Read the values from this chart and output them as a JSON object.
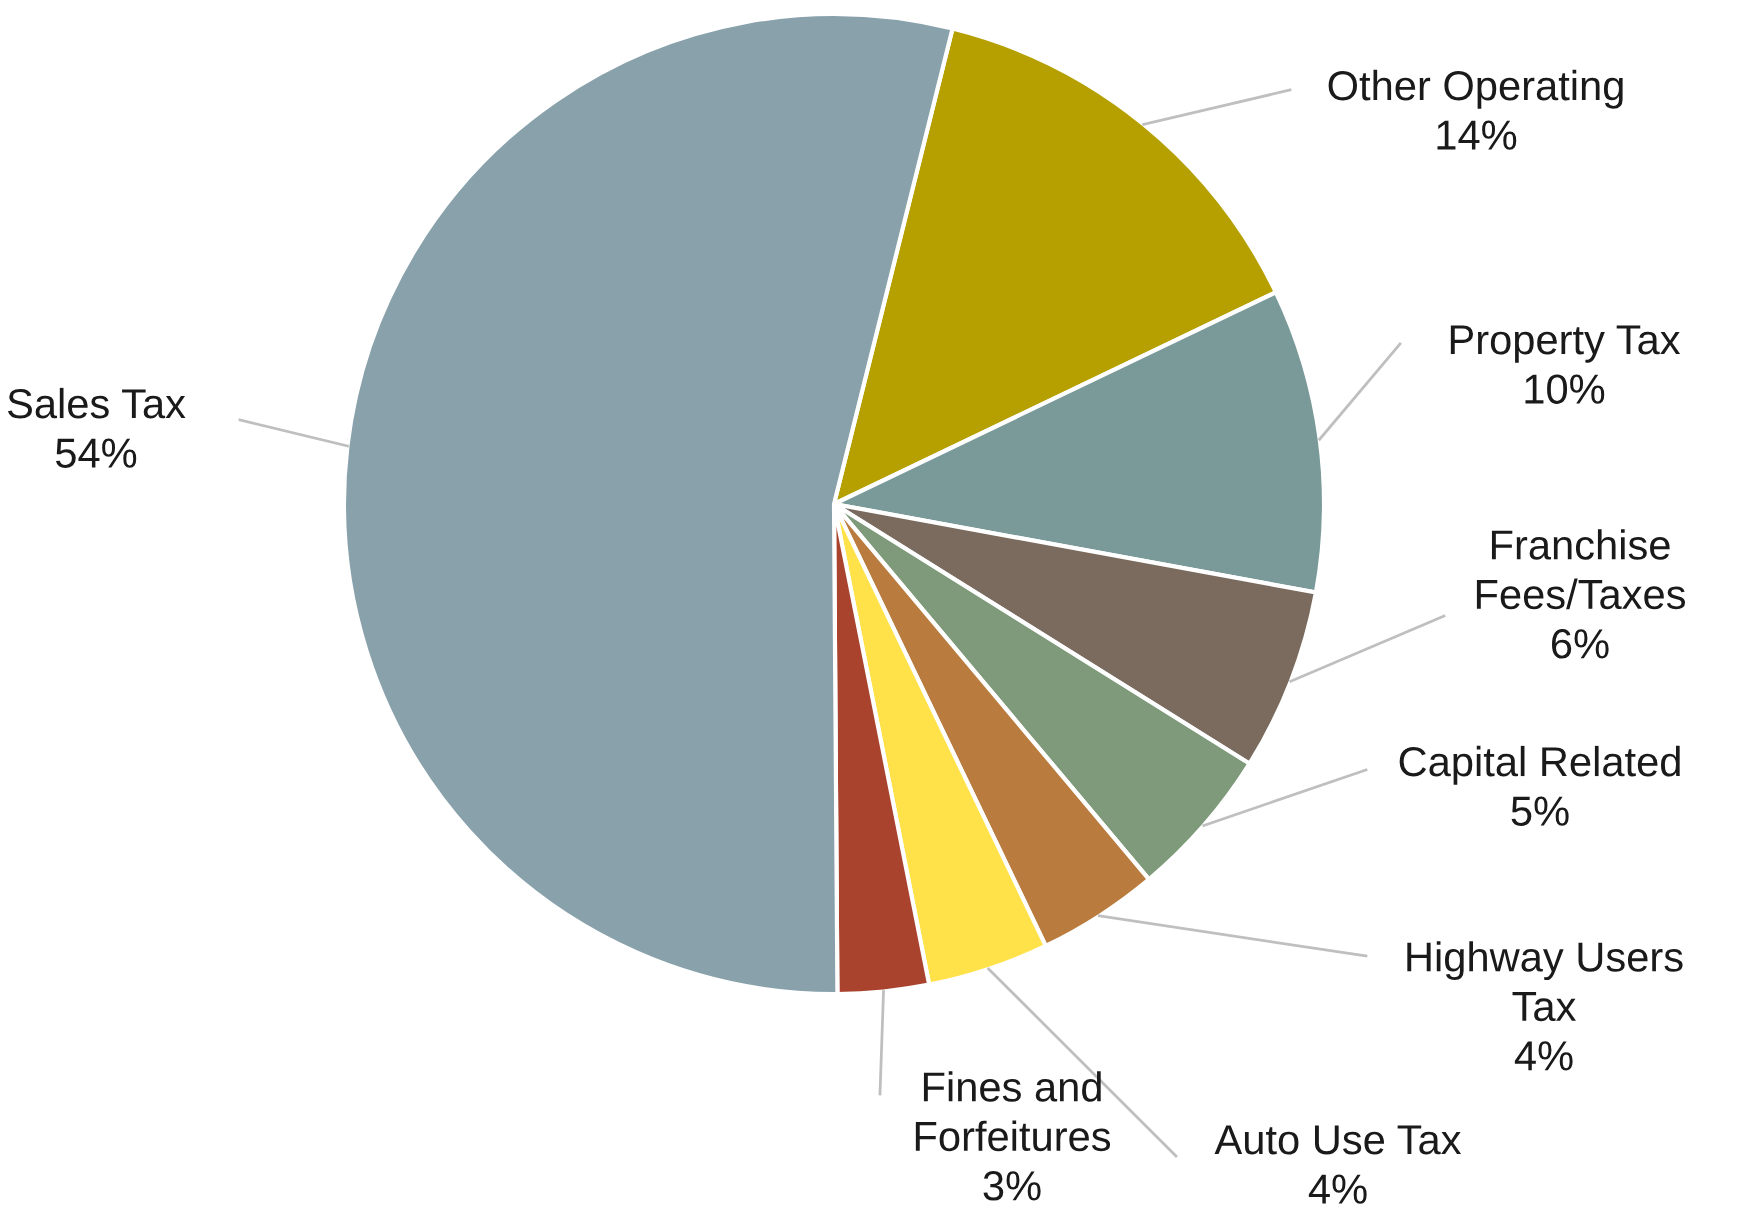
{
  "chart_data": {
    "type": "pie",
    "categories": [
      "Other Operating",
      "Property Tax",
      "Franchise Fees/Taxes",
      "Capital Related",
      "Highway Users Tax",
      "Auto Use Tax",
      "Fines and Forfeitures",
      "Sales Tax"
    ],
    "values": [
      14,
      10,
      6,
      5,
      4,
      4,
      3,
      54
    ],
    "value_labels": [
      "14%",
      "10%",
      "6%",
      "5%",
      "4%",
      "4%",
      "3%",
      "54%"
    ],
    "colors": [
      "#b5a000",
      "#7a9a9a",
      "#7a6b5e",
      "#7e9a7a",
      "#b97c3e",
      "#ffe24a",
      "#a9432e",
      "#88a1ab"
    ],
    "legend": false
  }
}
